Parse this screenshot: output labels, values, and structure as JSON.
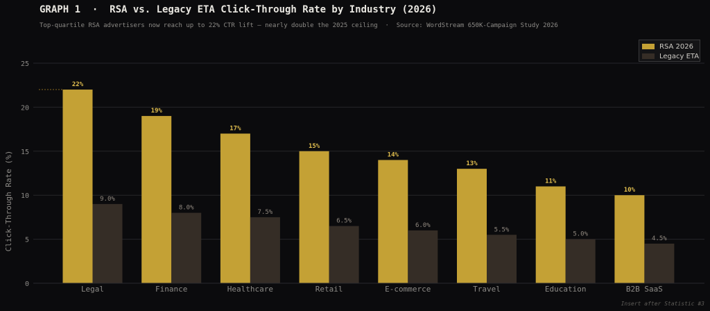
{
  "header": {
    "title": "GRAPH 1  ·  RSA vs. Legacy ETA Click-Through Rate by Industry (2026)",
    "subtitle": "Top-quartile RSA advertisers now reach up to 22% CTR lift — nearly double the 2025 ceiling  ·  Source: WordStream 650K-Campaign Study 2026"
  },
  "footer": {
    "note": "Insert after Statistic #3"
  },
  "colors": {
    "background": "#0b0b0d",
    "rsa": "#c4a135",
    "eta": "#352d26",
    "rsa_label": "#e2bf4f",
    "eta_label": "#8f877e",
    "grid": "#26262a",
    "tick": "#8c8a86"
  },
  "chart_data": {
    "type": "bar",
    "ylabel": "Click-Through Rate (%)",
    "xlabel": "",
    "ylim": [
      0,
      25
    ],
    "yticks": [
      "0",
      "5",
      "10",
      "15",
      "20",
      "25"
    ],
    "grid": true,
    "legend_position": "top-right",
    "categories": [
      "Legal",
      "Finance",
      "Healthcare",
      "Retail",
      "E-commerce",
      "Travel",
      "Education",
      "B2B SaaS"
    ],
    "series": [
      {
        "name": "RSA 2026",
        "values": [
          22,
          19,
          17,
          15,
          14,
          13,
          11,
          10
        ],
        "labels": [
          "22%",
          "19%",
          "17%",
          "15%",
          "14%",
          "13%",
          "11%",
          "10%"
        ]
      },
      {
        "name": "Legacy ETA",
        "values": [
          9.0,
          8.0,
          7.5,
          6.5,
          6.0,
          5.5,
          5.0,
          4.5
        ],
        "labels": [
          "9.0%",
          "8.0%",
          "7.5%",
          "6.5%",
          "6.0%",
          "5.5%",
          "5.0%",
          "4.5%"
        ]
      }
    ],
    "reference_line": {
      "value": 22,
      "style": "dashed"
    }
  }
}
